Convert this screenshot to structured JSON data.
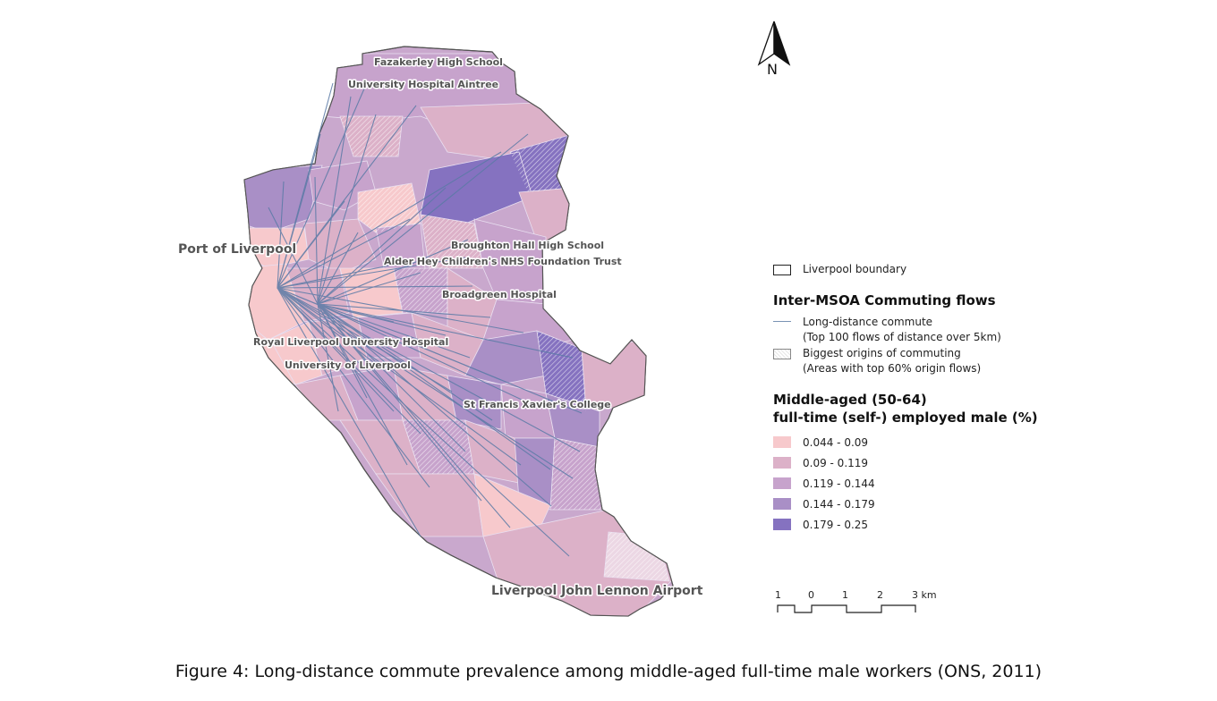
{
  "caption": "Figure 4: Long-distance commute prevalence among middle-aged full-time male workers (ONS, 2011)",
  "north_arrow": {
    "label": "N"
  },
  "places": {
    "fazakerley": "Fazakerley High School",
    "aintree": "University Hospital Aintree",
    "port": "Port of Liverpool",
    "broughton": "Broughton Hall High School",
    "alder_hey": "Alder Hey Children's NHS Foundation Trust",
    "broadgreen": "Broadgreen Hospital",
    "royal": "Royal Liverpool University Hospital",
    "university": "University of Liverpool",
    "st_francis": "St Francis Xavier's College",
    "airport": "Liverpool John Lennon Airport"
  },
  "legend": {
    "boundary": "Liverpool boundary",
    "flows_heading": "Inter-MSOA Commuting flows",
    "long_distance": "Long-distance commute",
    "long_distance_note": "(Top 100 flows of distance over 5km)",
    "origins": "Biggest  origins of commuting",
    "origins_note": "(Areas with top 60% origin flows)",
    "class_heading_1": "Middle-aged (50-64)",
    "class_heading_2": "full-time (self-) employed male (%)",
    "classes": [
      {
        "label": "0.044 - 0.09",
        "color": "#f7c9cc"
      },
      {
        "label": "0.09 - 0.119",
        "color": "#dcb1c8"
      },
      {
        "label": "0.119 - 0.144",
        "color": "#c7a3cc"
      },
      {
        "label": "0.144 - 0.179",
        "color": "#a98fc6"
      },
      {
        "label": "0.179 - 0.25",
        "color": "#8572c0"
      }
    ],
    "flow_color": "#5a7aa6"
  },
  "scale_bar": {
    "ticks": [
      "1",
      "0",
      "1",
      "2",
      "3 km"
    ]
  }
}
